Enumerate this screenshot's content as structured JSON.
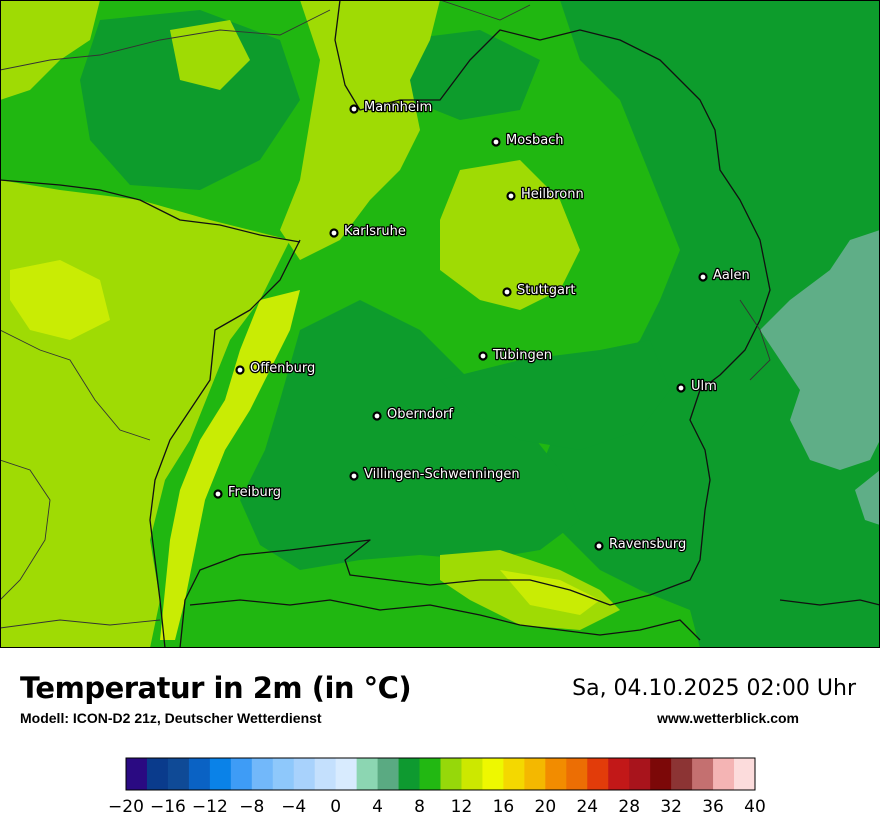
{
  "title": "Temperatur in 2m (in °C)",
  "model": "Modell: ICON-D2 21z, Deutscher Wetterdienst",
  "datetime": "Sa, 04.10.2025 02:00 Uhr",
  "website": "www.wetterblick.com",
  "cities": [
    {
      "name": "Mannheim",
      "id": "mannheim"
    },
    {
      "name": "Mosbach",
      "id": "mosbach"
    },
    {
      "name": "Heilbronn",
      "id": "heilbronn"
    },
    {
      "name": "Karlsruhe",
      "id": "karlsruhe"
    },
    {
      "name": "Stuttgart",
      "id": "stuttgart"
    },
    {
      "name": "Aalen",
      "id": "aalen"
    },
    {
      "name": "Tübingen",
      "id": "tuebingen"
    },
    {
      "name": "Offenburg",
      "id": "offenburg"
    },
    {
      "name": "Ulm",
      "id": "ulm"
    },
    {
      "name": "Oberndorf",
      "id": "oberndorf"
    },
    {
      "name": "Villingen-Schwenningen",
      "id": "villingen-schwenningen"
    },
    {
      "name": "Freiburg",
      "id": "freiburg"
    },
    {
      "name": "Ravensburg",
      "id": "ravensburg"
    }
  ],
  "legend": {
    "min": -20,
    "max": 40,
    "step": 2,
    "tick_labels": [
      "−20",
      "−16",
      "−12",
      "−8",
      "−4",
      "0",
      "4",
      "8",
      "12",
      "16",
      "20",
      "24",
      "28",
      "32",
      "36",
      "40"
    ],
    "colors": [
      "#2a0a82",
      "#0a3b8c",
      "#0f4a96",
      "#0a62c4",
      "#0a82e8",
      "#3e9cf6",
      "#72b8fa",
      "#8ec8fb",
      "#a8d2fc",
      "#c4e0fd",
      "#d8ebfe",
      "#8cd6b2",
      "#5aaa82",
      "#0e9a30",
      "#22b812",
      "#96d80a",
      "#cce800",
      "#eef800",
      "#f4d800",
      "#f4b800",
      "#f28c00",
      "#ec6e04",
      "#e23c0a",
      "#c21818",
      "#a8141c",
      "#7c0808",
      "#8c3434",
      "#c47070",
      "#f4b4b4",
      "#fcdcdc"
    ]
  },
  "map_colors": {
    "cool": "#5fae87",
    "mild": "#0d9c2c",
    "medium": "#20b711",
    "warm": "#9fdb04",
    "warmer": "#c9ec04"
  }
}
